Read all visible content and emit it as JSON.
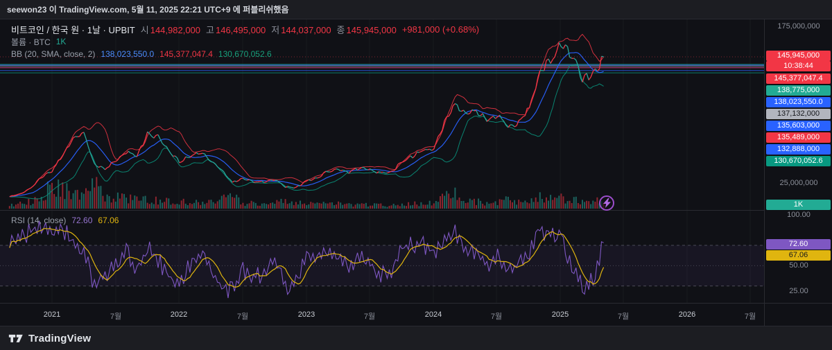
{
  "publish_bar": {
    "text": "seewon23 이 TradingView.com, 5월 11, 2025 22:21 UTC+9 에 퍼블리쉬했음"
  },
  "legend": {
    "symbol": "비트코인 / 한국 원 · 1날 · UPBIT",
    "ohlc": [
      {
        "label": "시",
        "value": "144,982,000"
      },
      {
        "label": "고",
        "value": "146,495,000"
      },
      {
        "label": "저",
        "value": "144,037,000"
      },
      {
        "label": "종",
        "value": "145,945,000"
      }
    ],
    "change": "+981,000 (+0.68%)",
    "volume_label": "볼륨 · BTC",
    "volume_value": "1K",
    "bb_label": "BB (20, SMA, close, 2)",
    "bb_values": [
      {
        "value": "138,023,550.0",
        "color": "#4c8dff"
      },
      {
        "value": "145,377,047.4",
        "color": "#f23645"
      },
      {
        "value": "130,670,052.6",
        "color": "#18a07c"
      }
    ],
    "rsi_label": "RSI (14, close)",
    "rsi_values": [
      {
        "value": "72.60",
        "color": "#9775d0"
      },
      {
        "value": "67.06",
        "color": "#e0b50f"
      }
    ]
  },
  "price_scale": {
    "top_tick": "175,000,000",
    "bottom_tick": "25,000,000",
    "tags": [
      {
        "text": "145,945,000",
        "bg": "#f23645",
        "fg": "#ffffff",
        "name": "current-price-tag"
      },
      {
        "text": "10:38:44",
        "bg": "#f23645",
        "fg": "#ffffff",
        "name": "bar-close-countdown-tag"
      },
      {
        "text": "145,377,047.4",
        "bg": "#f23645",
        "fg": "#ffffff",
        "name": "bb-upper-value-tag"
      },
      {
        "text": "138,775,000",
        "bg": "#22ab94",
        "fg": "#ffffff",
        "name": "price-level-tag"
      },
      {
        "text": "138,023,550.0",
        "bg": "#2962ff",
        "fg": "#ffffff",
        "name": "bb-basis-value-tag"
      },
      {
        "text": "137,132,000",
        "bg": "#b2b5be",
        "fg": "#16171c",
        "name": "price-level-tag"
      },
      {
        "text": "135,603,000",
        "bg": "#2962ff",
        "fg": "#ffffff",
        "name": "price-level-tag"
      },
      {
        "text": "135,489,000",
        "bg": "#f23645",
        "fg": "#ffffff",
        "name": "price-level-tag"
      },
      {
        "text": "132,888,000",
        "bg": "#2962ff",
        "fg": "#ffffff",
        "name": "price-level-tag"
      },
      {
        "text": "130,670,052.6",
        "bg": "#089981",
        "fg": "#ffffff",
        "name": "bb-lower-value-tag"
      }
    ]
  },
  "volume_scale": {
    "tag": {
      "text": "1K",
      "bg": "#22ab94",
      "fg": "#ffffff"
    }
  },
  "rsi_scale": {
    "ticks": [
      "100.00",
      "50.00",
      "25.00"
    ],
    "tags": [
      {
        "text": "72.60",
        "bg": "#7e57c2",
        "fg": "#ffffff"
      },
      {
        "text": "67.06",
        "bg": "#e0b50f",
        "fg": "#17181c"
      }
    ]
  },
  "time_axis": {
    "labels": [
      {
        "text": "2021",
        "type": "year"
      },
      {
        "text": "7월",
        "type": "month"
      },
      {
        "text": "2022",
        "type": "year"
      },
      {
        "text": "7월",
        "type": "month"
      },
      {
        "text": "2023",
        "type": "year"
      },
      {
        "text": "7월",
        "type": "month"
      },
      {
        "text": "2024",
        "type": "year"
      },
      {
        "text": "7월",
        "type": "month"
      },
      {
        "text": "2025",
        "type": "year"
      },
      {
        "text": "7월",
        "type": "month"
      },
      {
        "text": "2026",
        "type": "year"
      },
      {
        "text": "7월",
        "type": "month"
      }
    ]
  },
  "footer": {
    "logo_text": "TradingView"
  },
  "colors": {
    "up": "#f23645",
    "down": "#26a69a",
    "bb_basis": "#2962ff",
    "bb_upper": "#f23645",
    "bb_lower": "#089981",
    "rsi": "#7e57c2",
    "rsi_ma": "#e0b50f",
    "volume_value": "#22ab94",
    "axis_text": "#8c909a"
  },
  "chart_data": {
    "type": "candlestick",
    "title": "비트코인 / 한국 원 · 1날 · UPBIT",
    "exchange": "UPBIT",
    "interval": "1날",
    "ohlc_latest": {
      "open": 144982000,
      "high": 146495000,
      "low": 144037000,
      "close": 145945000,
      "change": 981000,
      "change_pct": 0.68
    },
    "indicators": {
      "bollinger": {
        "label": "BB (20, SMA, close, 2)",
        "basis": 138023550.0,
        "upper": 145377047.4,
        "lower": 130670052.6
      },
      "volume": {
        "label": "볼륨 · BTC",
        "value": "1K"
      },
      "rsi": {
        "label": "RSI (14, close)",
        "value": 72.6,
        "ma": 67.06,
        "bands": [
          70,
          50,
          30
        ]
      }
    },
    "price_axis": {
      "min": 25000000,
      "max": 175000000,
      "visible_ticks": [
        "175,000,000",
        "25,000,000"
      ]
    },
    "rsi_axis": {
      "ticks": [
        100,
        50,
        25
      ]
    },
    "x_range": {
      "start": "2020-09",
      "end": "2025-05",
      "interval": "month",
      "future_visible_until": "2026-07"
    },
    "close_millions": [
      12.5,
      15,
      21,
      31,
      37,
      52,
      68,
      74,
      43,
      39,
      47,
      55,
      51,
      72,
      70,
      56,
      46,
      51,
      55,
      47,
      38,
      26,
      30,
      27,
      27,
      29,
      22,
      21,
      28,
      30,
      37,
      39,
      36,
      40,
      38,
      35,
      36,
      46,
      51,
      57,
      58,
      84,
      100,
      91,
      95,
      86,
      90,
      79,
      84,
      97,
      131,
      143,
      158,
      148,
      126,
      128,
      146
    ],
    "volume_rel": [
      0.15,
      0.2,
      0.3,
      0.5,
      0.9,
      0.8,
      0.6,
      0.7,
      1.0,
      0.5,
      0.45,
      0.4,
      0.35,
      0.4,
      0.35,
      0.3,
      0.3,
      0.25,
      0.25,
      0.25,
      0.35,
      0.45,
      0.25,
      0.2,
      0.2,
      0.2,
      0.35,
      0.2,
      0.25,
      0.2,
      0.25,
      0.2,
      0.15,
      0.15,
      0.15,
      0.15,
      0.12,
      0.2,
      0.2,
      0.2,
      0.25,
      0.5,
      0.55,
      0.35,
      0.3,
      0.25,
      0.3,
      0.35,
      0.25,
      0.3,
      0.5,
      0.45,
      0.4,
      0.35,
      0.3,
      0.3,
      0.35
    ],
    "rsi": [
      70,
      75,
      85,
      90,
      80,
      85,
      75,
      65,
      30,
      40,
      55,
      65,
      45,
      70,
      55,
      40,
      35,
      50,
      60,
      45,
      30,
      25,
      45,
      40,
      42,
      55,
      28,
      35,
      60,
      55,
      65,
      60,
      45,
      58,
      50,
      42,
      45,
      68,
      70,
      72,
      60,
      80,
      85,
      60,
      65,
      50,
      58,
      42,
      55,
      65,
      85,
      80,
      82,
      45,
      30,
      35,
      72.6
    ],
    "horizontal_lines": [
      {
        "price": 145945000,
        "color": "#f23645",
        "style": "dotted"
      },
      {
        "price": 138775000,
        "color": "#22ab94",
        "style": "solid"
      },
      {
        "price": 138023550,
        "color": "#2962ff",
        "style": "solid"
      },
      {
        "price": 137132000,
        "color": "#b2b5be",
        "style": "solid"
      },
      {
        "price": 135603000,
        "color": "#2962ff",
        "style": "solid"
      },
      {
        "price": 135489000,
        "color": "#f23645",
        "style": "solid"
      },
      {
        "price": 132888000,
        "color": "#2962ff",
        "style": "solid"
      },
      {
        "price": 130670052.6,
        "color": "#089981",
        "style": "solid"
      }
    ]
  }
}
